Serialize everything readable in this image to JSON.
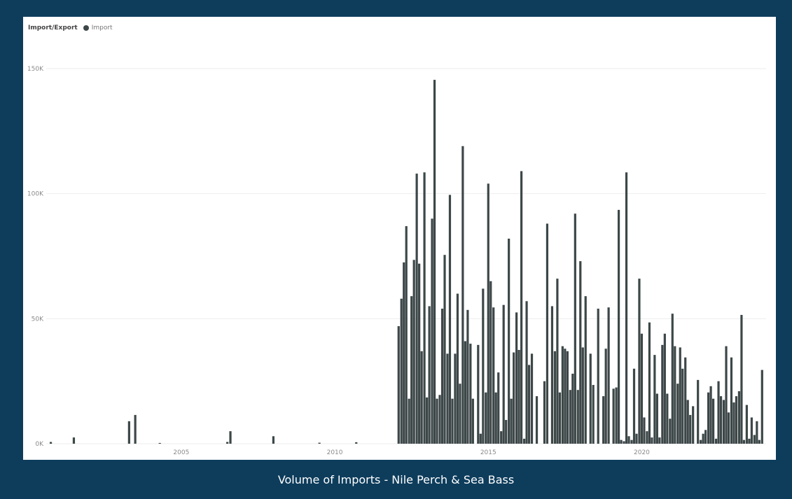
{
  "caption": "Volume of Imports - Nile Perch & Sea Bass",
  "chart_data": {
    "type": "bar",
    "legend_title": "Import/Export",
    "legend_position": "top-left",
    "grid": true,
    "series": [
      {
        "name": "Import",
        "color": "#3d4748",
        "points": [
          {
            "x": 2000.75,
            "y": 700
          },
          {
            "x": 2001.5,
            "y": 2500
          },
          {
            "x": 2003.3,
            "y": 9000
          },
          {
            "x": 2003.5,
            "y": 11500
          },
          {
            "x": 2004.3,
            "y": 300
          },
          {
            "x": 2006.5,
            "y": 700
          },
          {
            "x": 2006.6,
            "y": 5000
          },
          {
            "x": 2008.0,
            "y": 3000
          },
          {
            "x": 2009.5,
            "y": 400
          },
          {
            "x": 2010.7,
            "y": 600
          },
          {
            "x": 2012.08,
            "y": 47000
          },
          {
            "x": 2012.17,
            "y": 58000
          },
          {
            "x": 2012.25,
            "y": 72500
          },
          {
            "x": 2012.33,
            "y": 87000
          },
          {
            "x": 2012.42,
            "y": 18000
          },
          {
            "x": 2012.5,
            "y": 59000
          },
          {
            "x": 2012.58,
            "y": 73500
          },
          {
            "x": 2012.67,
            "y": 108000
          },
          {
            "x": 2012.75,
            "y": 72000
          },
          {
            "x": 2012.83,
            "y": 37000
          },
          {
            "x": 2012.92,
            "y": 108500
          },
          {
            "x": 2013.0,
            "y": 18500
          },
          {
            "x": 2013.08,
            "y": 55000
          },
          {
            "x": 2013.17,
            "y": 90000
          },
          {
            "x": 2013.25,
            "y": 145500
          },
          {
            "x": 2013.33,
            "y": 18000
          },
          {
            "x": 2013.42,
            "y": 19500
          },
          {
            "x": 2013.5,
            "y": 54000
          },
          {
            "x": 2013.58,
            "y": 75500
          },
          {
            "x": 2013.67,
            "y": 36000
          },
          {
            "x": 2013.75,
            "y": 99500
          },
          {
            "x": 2013.83,
            "y": 18000
          },
          {
            "x": 2013.92,
            "y": 36000
          },
          {
            "x": 2014.0,
            "y": 60000
          },
          {
            "x": 2014.08,
            "y": 24000
          },
          {
            "x": 2014.17,
            "y": 119000
          },
          {
            "x": 2014.25,
            "y": 41000
          },
          {
            "x": 2014.33,
            "y": 53500
          },
          {
            "x": 2014.42,
            "y": 40000
          },
          {
            "x": 2014.5,
            "y": 18000
          },
          {
            "x": 2014.67,
            "y": 39500
          },
          {
            "x": 2014.75,
            "y": 4000
          },
          {
            "x": 2014.83,
            "y": 62000
          },
          {
            "x": 2014.92,
            "y": 20500
          },
          {
            "x": 2015.0,
            "y": 104000
          },
          {
            "x": 2015.08,
            "y": 65000
          },
          {
            "x": 2015.17,
            "y": 54500
          },
          {
            "x": 2015.25,
            "y": 20500
          },
          {
            "x": 2015.33,
            "y": 28500
          },
          {
            "x": 2015.42,
            "y": 5000
          },
          {
            "x": 2015.5,
            "y": 55500
          },
          {
            "x": 2015.58,
            "y": 9500
          },
          {
            "x": 2015.67,
            "y": 82000
          },
          {
            "x": 2015.75,
            "y": 18000
          },
          {
            "x": 2015.83,
            "y": 36500
          },
          {
            "x": 2015.92,
            "y": 52500
          },
          {
            "x": 2016.0,
            "y": 37500
          },
          {
            "x": 2016.08,
            "y": 109000
          },
          {
            "x": 2016.17,
            "y": 2000
          },
          {
            "x": 2016.25,
            "y": 57000
          },
          {
            "x": 2016.33,
            "y": 31500
          },
          {
            "x": 2016.42,
            "y": 36000
          },
          {
            "x": 2016.58,
            "y": 19000
          },
          {
            "x": 2016.83,
            "y": 25000
          },
          {
            "x": 2016.92,
            "y": 88000
          },
          {
            "x": 2017.08,
            "y": 55000
          },
          {
            "x": 2017.17,
            "y": 37000
          },
          {
            "x": 2017.25,
            "y": 66000
          },
          {
            "x": 2017.33,
            "y": 20500
          },
          {
            "x": 2017.42,
            "y": 39000
          },
          {
            "x": 2017.5,
            "y": 38000
          },
          {
            "x": 2017.58,
            "y": 37000
          },
          {
            "x": 2017.67,
            "y": 21500
          },
          {
            "x": 2017.75,
            "y": 28000
          },
          {
            "x": 2017.83,
            "y": 92000
          },
          {
            "x": 2017.92,
            "y": 21500
          },
          {
            "x": 2018.0,
            "y": 73000
          },
          {
            "x": 2018.08,
            "y": 38500
          },
          {
            "x": 2018.17,
            "y": 59000
          },
          {
            "x": 2018.33,
            "y": 36000
          },
          {
            "x": 2018.42,
            "y": 23500
          },
          {
            "x": 2018.58,
            "y": 54000
          },
          {
            "x": 2018.75,
            "y": 19000
          },
          {
            "x": 2018.83,
            "y": 38000
          },
          {
            "x": 2018.92,
            "y": 54500
          },
          {
            "x": 2019.08,
            "y": 22000
          },
          {
            "x": 2019.17,
            "y": 22500
          },
          {
            "x": 2019.25,
            "y": 93500
          },
          {
            "x": 2019.33,
            "y": 1500
          },
          {
            "x": 2019.42,
            "y": 1000
          },
          {
            "x": 2019.5,
            "y": 108500
          },
          {
            "x": 2019.58,
            "y": 3000
          },
          {
            "x": 2019.67,
            "y": 1500
          },
          {
            "x": 2019.75,
            "y": 30000
          },
          {
            "x": 2019.83,
            "y": 4000
          },
          {
            "x": 2019.92,
            "y": 66000
          },
          {
            "x": 2020.0,
            "y": 44000
          },
          {
            "x": 2020.08,
            "y": 10500
          },
          {
            "x": 2020.17,
            "y": 5000
          },
          {
            "x": 2020.25,
            "y": 48500
          },
          {
            "x": 2020.33,
            "y": 2500
          },
          {
            "x": 2020.42,
            "y": 35500
          },
          {
            "x": 2020.5,
            "y": 20000
          },
          {
            "x": 2020.58,
            "y": 2500
          },
          {
            "x": 2020.67,
            "y": 39500
          },
          {
            "x": 2020.75,
            "y": 44000
          },
          {
            "x": 2020.83,
            "y": 20000
          },
          {
            "x": 2020.92,
            "y": 10000
          },
          {
            "x": 2021.0,
            "y": 52000
          },
          {
            "x": 2021.08,
            "y": 39000
          },
          {
            "x": 2021.17,
            "y": 24000
          },
          {
            "x": 2021.25,
            "y": 38500
          },
          {
            "x": 2021.33,
            "y": 30000
          },
          {
            "x": 2021.42,
            "y": 34500
          },
          {
            "x": 2021.5,
            "y": 17500
          },
          {
            "x": 2021.58,
            "y": 11500
          },
          {
            "x": 2021.67,
            "y": 15000
          },
          {
            "x": 2021.83,
            "y": 25500
          },
          {
            "x": 2021.92,
            "y": 1500
          },
          {
            "x": 2022.0,
            "y": 4000
          },
          {
            "x": 2022.08,
            "y": 5500
          },
          {
            "x": 2022.17,
            "y": 20500
          },
          {
            "x": 2022.25,
            "y": 23000
          },
          {
            "x": 2022.33,
            "y": 18000
          },
          {
            "x": 2022.42,
            "y": 2000
          },
          {
            "x": 2022.5,
            "y": 25000
          },
          {
            "x": 2022.58,
            "y": 19000
          },
          {
            "x": 2022.67,
            "y": 17500
          },
          {
            "x": 2022.75,
            "y": 39000
          },
          {
            "x": 2022.83,
            "y": 12500
          },
          {
            "x": 2022.92,
            "y": 34500
          },
          {
            "x": 2023.0,
            "y": 16500
          },
          {
            "x": 2023.08,
            "y": 19000
          },
          {
            "x": 2023.17,
            "y": 21000
          },
          {
            "x": 2023.25,
            "y": 51500
          },
          {
            "x": 2023.33,
            "y": 1500
          },
          {
            "x": 2023.42,
            "y": 15500
          },
          {
            "x": 2023.5,
            "y": 2000
          },
          {
            "x": 2023.58,
            "y": 10500
          },
          {
            "x": 2023.67,
            "y": 3500
          },
          {
            "x": 2023.75,
            "y": 9000
          },
          {
            "x": 2023.83,
            "y": 1500
          },
          {
            "x": 2023.92,
            "y": 29500
          }
        ]
      }
    ],
    "xlim": [
      2000.6,
      2024.05
    ],
    "ylim": [
      0,
      150000
    ],
    "xticks": [
      2005,
      2010,
      2015,
      2020
    ],
    "xtick_labels": [
      "2005",
      "2010",
      "2015",
      "2020"
    ],
    "yticks": [
      0,
      50000,
      100000,
      150000
    ],
    "ytick_labels": [
      "0K",
      "50K",
      "100K",
      "150K"
    ]
  }
}
